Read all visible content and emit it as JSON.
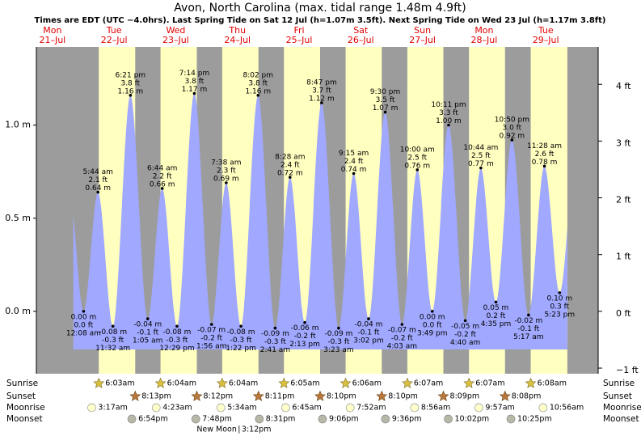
{
  "chart_data": {
    "type": "area",
    "title": "Avon, North Carolina (max. tidal range 1.48m 4.9ft)",
    "subtitle": "Times are EDT (UTC −4.0hrs). Last Spring Tide on Sat 12 Jul (h=1.07m 3.5ft). Next Spring Tide on Wed 23 Jul (h=1.17m 3.8ft)",
    "ylim": [
      -0.335,
      1.42
    ],
    "yticks": [
      {
        "value": 0,
        "label": "0.0 m"
      },
      {
        "value": 0.5,
        "label": "0.5 m"
      },
      {
        "value": 1,
        "label": "1.0 m"
      }
    ],
    "y2lim": [
      -1.099,
      4.659
    ],
    "y2ticks": [
      {
        "value": -1,
        "label": "−1 ft"
      },
      {
        "value": 0,
        "label": "0 ft"
      },
      {
        "value": 1,
        "label": "1 ft"
      },
      {
        "value": 2,
        "label": "2 ft"
      },
      {
        "value": 3,
        "label": "3 ft"
      },
      {
        "value": 4,
        "label": "4 ft"
      }
    ],
    "color": "#a0a8ff",
    "day_color": "#ffffc0",
    "night_color": "#9c9c9c",
    "row_labels": [
      "Sunrise",
      "Sunset",
      "Moonrise",
      "Moonset"
    ],
    "days": [
      {
        "dow": "Mon",
        "date": "21–Jul",
        "tides": []
      },
      {
        "dow": "Tue",
        "date": "22–Jul",
        "sunrise": "6:03am",
        "sunset": "8:13pm",
        "moonrise": "3:17am",
        "moonset": "6:54pm",
        "tides": [
          {
            "time": "12:08 am",
            "height": 0.0,
            "height_label": "0.00 m",
            "height_ft": "0.0 ft"
          },
          {
            "time": "5:44 am",
            "height": 0.64,
            "height_label": "0.64 m",
            "height_ft": "2.1 ft"
          },
          {
            "time": "11:32 am",
            "height": -0.08,
            "height_label": "-0.08 m",
            "height_ft": "-0.3 ft"
          },
          {
            "time": "6:21 pm",
            "height": 1.16,
            "height_label": "1.16 m",
            "height_ft": "3.8 ft"
          }
        ]
      },
      {
        "dow": "Wed",
        "date": "23–Jul",
        "sunrise": "6:04am",
        "sunset": "8:12pm",
        "moonrise": "4:23am",
        "moonset": "7:48pm",
        "tides": [
          {
            "time": "1:05 am",
            "height": -0.04,
            "height_label": "-0.04 m",
            "height_ft": "-0.1 ft"
          },
          {
            "time": "6:44 am",
            "height": 0.66,
            "height_label": "0.66 m",
            "height_ft": "2.2 ft"
          },
          {
            "time": "12:29 pm",
            "height": -0.08,
            "height_label": "-0.08 m",
            "height_ft": "-0.3 ft"
          },
          {
            "time": "7:14 pm",
            "height": 1.17,
            "height_label": "1.17 m",
            "height_ft": "3.8 ft"
          }
        ]
      },
      {
        "dow": "Thu",
        "date": "24–Jul",
        "sunrise": "6:04am",
        "sunset": "8:11pm",
        "moonrise": "5:34am",
        "moonset": "8:31pm",
        "moon_phase": {
          "name": "New Moon",
          "time": "3:12pm"
        },
        "tides": [
          {
            "time": "1:56 am",
            "height": -0.07,
            "height_label": "-0.07 m",
            "height_ft": "-0.2 ft"
          },
          {
            "time": "7:38 am",
            "height": 0.69,
            "height_label": "0.69 m",
            "height_ft": "2.3 ft"
          },
          {
            "time": "1:22 pm",
            "height": -0.08,
            "height_label": "-0.08 m",
            "height_ft": "-0.3 ft"
          },
          {
            "time": "8:02 pm",
            "height": 1.16,
            "height_label": "1.16 m",
            "height_ft": "3.8 ft"
          }
        ]
      },
      {
        "dow": "Fri",
        "date": "25–Jul",
        "sunrise": "6:05am",
        "sunset": "8:10pm",
        "moonrise": "6:45am",
        "moonset": "9:06pm",
        "tides": [
          {
            "time": "2:41 am",
            "height": -0.09,
            "height_label": "-0.09 m",
            "height_ft": "-0.3 ft"
          },
          {
            "time": "8:28 am",
            "height": 0.72,
            "height_label": "0.72 m",
            "height_ft": "2.4 ft"
          },
          {
            "time": "2:13 pm",
            "height": -0.06,
            "height_label": "-0.06 m",
            "height_ft": "-0.2 ft"
          },
          {
            "time": "8:47 pm",
            "height": 1.12,
            "height_label": "1.12 m",
            "height_ft": "3.7 ft"
          }
        ]
      },
      {
        "dow": "Sat",
        "date": "26–Jul",
        "sunrise": "6:06am",
        "sunset": "8:10pm",
        "moonrise": "7:52am",
        "moonset": "9:36pm",
        "tides": [
          {
            "time": "3:23 am",
            "height": -0.09,
            "height_label": "-0.09 m",
            "height_ft": "-0.3 ft"
          },
          {
            "time": "9:15 am",
            "height": 0.74,
            "height_label": "0.74 m",
            "height_ft": "2.4 ft"
          },
          {
            "time": "3:02 pm",
            "height": -0.04,
            "height_label": "-0.04 m",
            "height_ft": "-0.1 ft"
          },
          {
            "time": "9:30 pm",
            "height": 1.07,
            "height_label": "1.07 m",
            "height_ft": "3.5 ft"
          }
        ]
      },
      {
        "dow": "Sun",
        "date": "27–Jul",
        "sunrise": "6:07am",
        "sunset": "8:09pm",
        "moonrise": "8:56am",
        "moonset": "10:02pm",
        "tides": [
          {
            "time": "4:03 am",
            "height": -0.07,
            "height_label": "-0.07 m",
            "height_ft": "-0.2 ft"
          },
          {
            "time": "10:00 am",
            "height": 0.76,
            "height_label": "0.76 m",
            "height_ft": "2.5 ft"
          },
          {
            "time": "3:49 pm",
            "height": 0.0,
            "height_label": "0.00 m",
            "height_ft": "0.0 ft"
          },
          {
            "time": "10:11 pm",
            "height": 1.0,
            "height_label": "1.00 m",
            "height_ft": "3.3 ft"
          }
        ]
      },
      {
        "dow": "Mon",
        "date": "28–Jul",
        "sunrise": "6:07am",
        "sunset": "8:08pm",
        "moonrise": "9:57am",
        "moonset": "10:25pm",
        "tides": [
          {
            "time": "4:40 am",
            "height": -0.05,
            "height_label": "-0.05 m",
            "height_ft": "-0.2 ft"
          },
          {
            "time": "10:44 am",
            "height": 0.77,
            "height_label": "0.77 m",
            "height_ft": "2.5 ft"
          },
          {
            "time": "4:35 pm",
            "height": 0.05,
            "height_label": "0.05 m",
            "height_ft": "0.2 ft"
          },
          {
            "time": "10:50 pm",
            "height": 0.92,
            "height_label": "0.92 m",
            "height_ft": "3.0 ft"
          }
        ]
      },
      {
        "dow": "Tue",
        "date": "29–Jul",
        "sunrise": "6:08am",
        "moonrise": "10:56am",
        "tides": [
          {
            "time": "5:17 am",
            "height": -0.02,
            "height_label": "-0.02 m",
            "height_ft": "-0.1 ft"
          },
          {
            "time": "11:28 am",
            "height": 0.78,
            "height_label": "0.78 m",
            "height_ft": "2.6 ft"
          },
          {
            "time": "5:23 pm",
            "height": 0.1,
            "height_label": "0.10 m",
            "height_ft": "0.3 ft"
          }
        ]
      }
    ]
  }
}
